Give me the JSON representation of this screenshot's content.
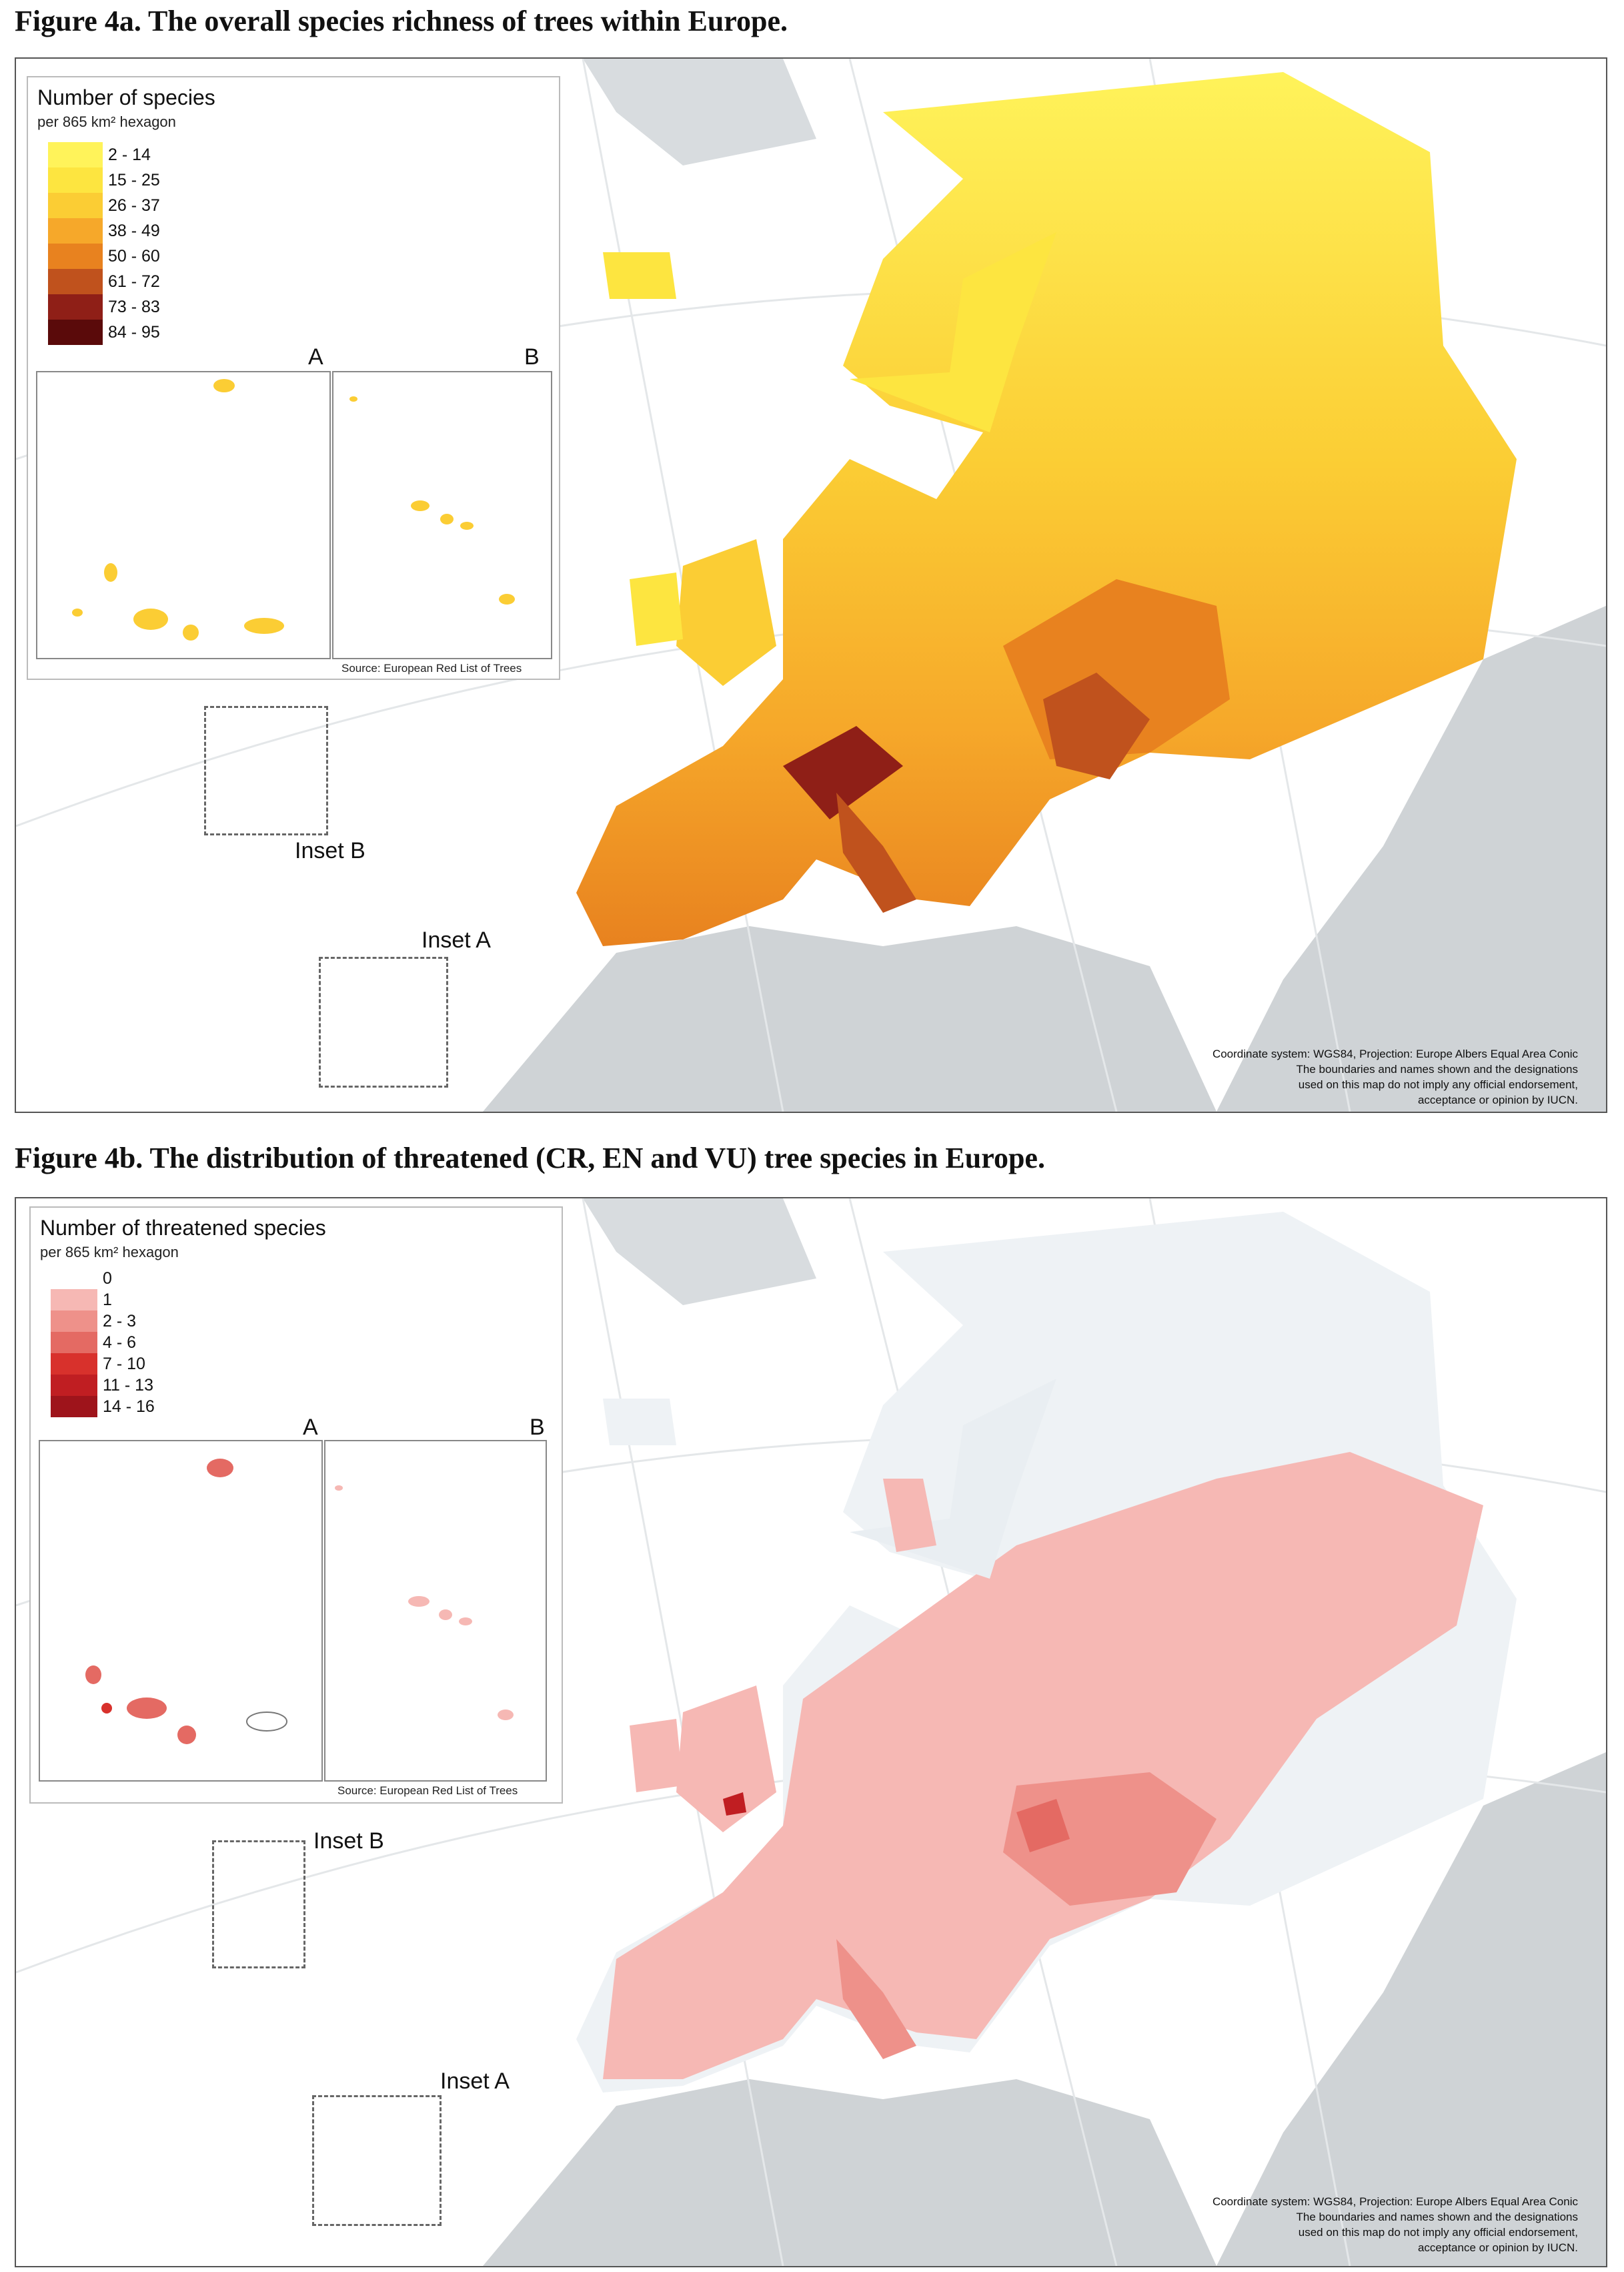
{
  "fig_a": {
    "title": "Figure 4a. The overall species richness of trees within Europe.",
    "legend_title": "Number of species",
    "legend_subtitle": "per 865 km² hexagon",
    "classes": [
      {
        "label": "2 - 14",
        "color": "#fff35a"
      },
      {
        "label": "15 - 25",
        "color": "#fde540"
      },
      {
        "label": "26 - 37",
        "color": "#fbcd34"
      },
      {
        "label": "38 - 49",
        "color": "#f6a82a"
      },
      {
        "label": "50 - 60",
        "color": "#e8821f"
      },
      {
        "label": "61 - 72",
        "color": "#c0521d"
      },
      {
        "label": "73 - 83",
        "color": "#8f1f17"
      },
      {
        "label": "84 - 95",
        "color": "#5a0a0a"
      }
    ],
    "inset_a_letter": "A",
    "inset_b_letter": "B",
    "source": "Source: European Red List of Trees",
    "inset_b_label": "Inset B",
    "inset_a_label": "Inset A",
    "credit": [
      "Coordinate system: WGS84, Projection: Europe Albers Equal Area Conic",
      "The boundaries and names shown and the designations",
      "used on this map do not imply any official endorsement,",
      "acceptance or opinion by IUCN."
    ]
  },
  "fig_b": {
    "title": "Figure 4b. The distribution of threatened (CR, EN and VU) tree species in Europe.",
    "legend_title": "Number of threatened species",
    "legend_subtitle": "per 865 km² hexagon",
    "classes": [
      {
        "label": "0",
        "color": "#ffffff"
      },
      {
        "label": "1",
        "color": "#f6b8b4"
      },
      {
        "label": "2 - 3",
        "color": "#ee918a"
      },
      {
        "label": "4 - 6",
        "color": "#e46a63"
      },
      {
        "label": "7 - 10",
        "color": "#d8312c"
      },
      {
        "label": "11 - 13",
        "color": "#c01e22"
      },
      {
        "label": "14 - 16",
        "color": "#9e141b"
      }
    ],
    "inset_a_letter": "A",
    "inset_b_letter": "B",
    "source": "Source: European Red List of Trees",
    "inset_b_label": "Inset B",
    "inset_a_label": "Inset A",
    "credit": [
      "Coordinate system: WGS84, Projection: Europe Albers Equal Area Conic",
      "The boundaries and names shown and the designations",
      "used on this map do not imply any official endorsement,",
      "acceptance or opinion by IUCN."
    ]
  }
}
